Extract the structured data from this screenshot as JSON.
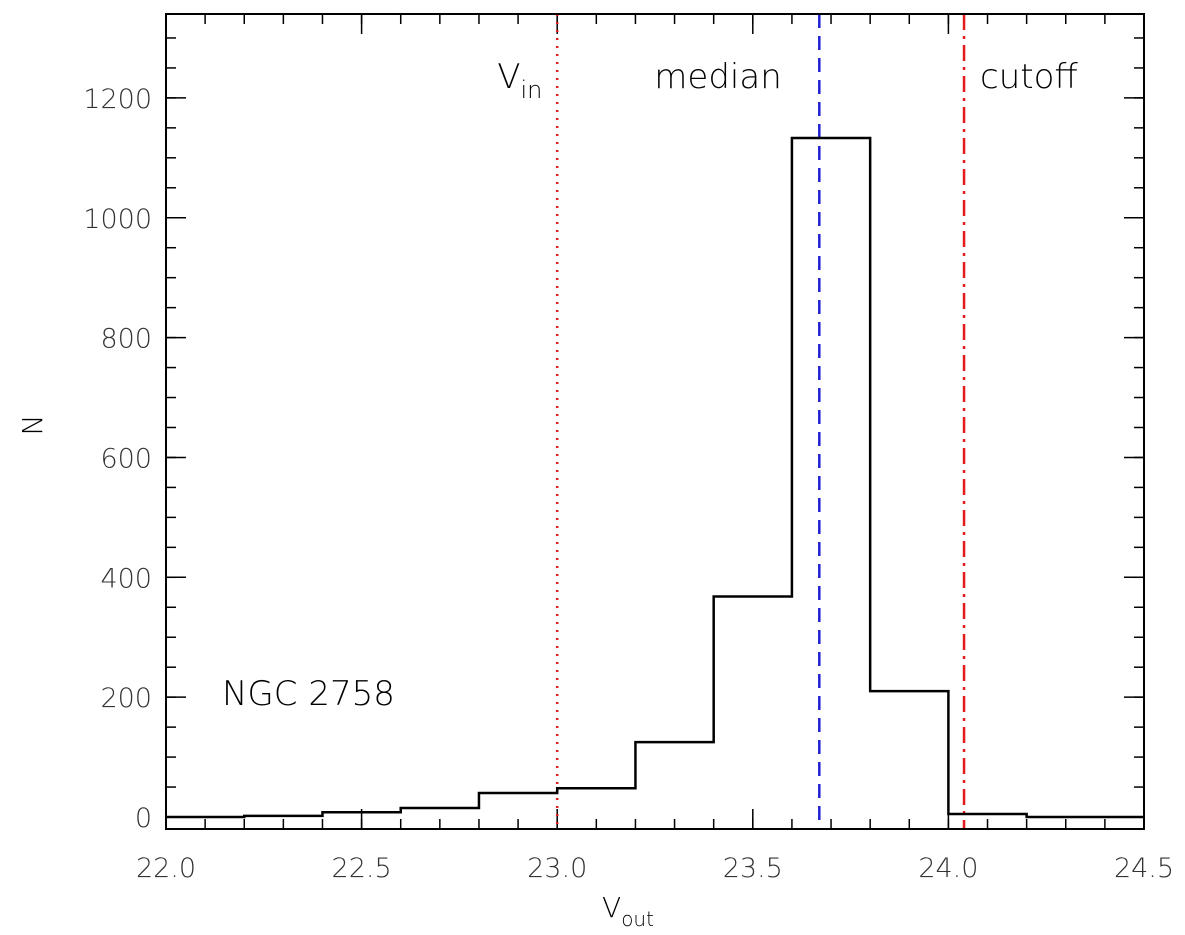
{
  "chart_data": {
    "type": "histogram",
    "title": "",
    "annotation": "NGC 2758",
    "xlabel": {
      "main": "V",
      "sub": "out"
    },
    "ylabel": "N",
    "xlim": [
      22.0,
      24.5
    ],
    "ylim": [
      -20,
      1340
    ],
    "x_ticks": [
      22.0,
      22.5,
      23.0,
      23.5,
      24.0,
      24.5
    ],
    "x_tick_labels": [
      "22.0",
      "22.5",
      "23.0",
      "23.5",
      "24.0",
      "24.5"
    ],
    "x_minor_step": 0.1,
    "y_ticks": [
      0,
      200,
      400,
      600,
      800,
      1000,
      1200
    ],
    "y_tick_labels": [
      "0",
      "200",
      "400",
      "600",
      "800",
      "1000",
      "1200"
    ],
    "y_minor_step": 50,
    "grid": false,
    "bins": [
      {
        "x0": 22.0,
        "x1": 22.2,
        "value": 0
      },
      {
        "x0": 22.2,
        "x1": 22.4,
        "value": 2
      },
      {
        "x0": 22.4,
        "x1": 22.6,
        "value": 8
      },
      {
        "x0": 22.6,
        "x1": 22.8,
        "value": 15
      },
      {
        "x0": 22.8,
        "x1": 23.0,
        "value": 40
      },
      {
        "x0": 23.0,
        "x1": 23.2,
        "value": 48
      },
      {
        "x0": 23.2,
        "x1": 23.4,
        "value": 125
      },
      {
        "x0": 23.4,
        "x1": 23.6,
        "value": 368
      },
      {
        "x0": 23.6,
        "x1": 23.8,
        "value": 1133
      },
      {
        "x0": 23.8,
        "x1": 24.0,
        "value": 210
      },
      {
        "x0": 24.0,
        "x1": 24.2,
        "value": 5
      },
      {
        "x0": 24.2,
        "x1": 24.4,
        "value": 0
      },
      {
        "x0": 24.4,
        "x1": 24.5,
        "value": 0
      }
    ],
    "reference_lines": [
      {
        "name": "vin-line",
        "x": 23.0,
        "color": "#e41a1c",
        "style": "dotted",
        "label_main": "V",
        "label_sub": "in"
      },
      {
        "name": "median-line",
        "x": 23.67,
        "color": "#1f1fd6",
        "style": "dashed",
        "label_main": "median",
        "label_sub": ""
      },
      {
        "name": "cutoff-line",
        "x": 24.04,
        "color": "#e41a1c",
        "style": "dashdot",
        "label_main": "cutoff",
        "label_sub": ""
      }
    ]
  }
}
